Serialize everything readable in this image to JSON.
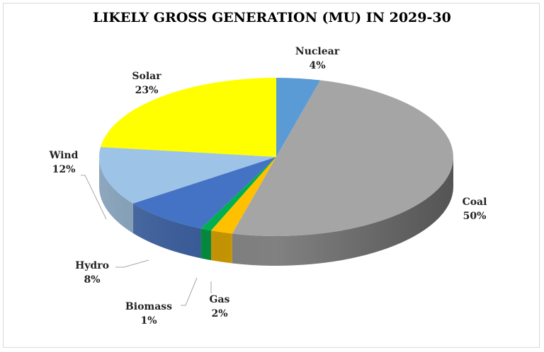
{
  "chart_data": {
    "type": "pie",
    "style": "3d",
    "title": "LIKELY GROSS GENERATION (MU) IN 2029-30",
    "slices": [
      {
        "label": "Nuclear",
        "value": 4,
        "display": "4%",
        "color": "#5b9bd5"
      },
      {
        "label": "Coal",
        "value": 50,
        "display": "50%",
        "color": "#a5a5a5"
      },
      {
        "label": "Gas",
        "value": 2,
        "display": "2%",
        "color": "#ffc000"
      },
      {
        "label": "Biomass",
        "value": 1,
        "display": "1%",
        "color": "#00b050"
      },
      {
        "label": "Hydro",
        "value": 8,
        "display": "8%",
        "color": "#4472c4"
      },
      {
        "label": "Wind",
        "value": 12,
        "display": "12%",
        "color": "#9dc3e6"
      },
      {
        "label": "Solar",
        "value": 23,
        "display": "23%",
        "color": "#ffff00"
      }
    ],
    "legend": "none"
  }
}
